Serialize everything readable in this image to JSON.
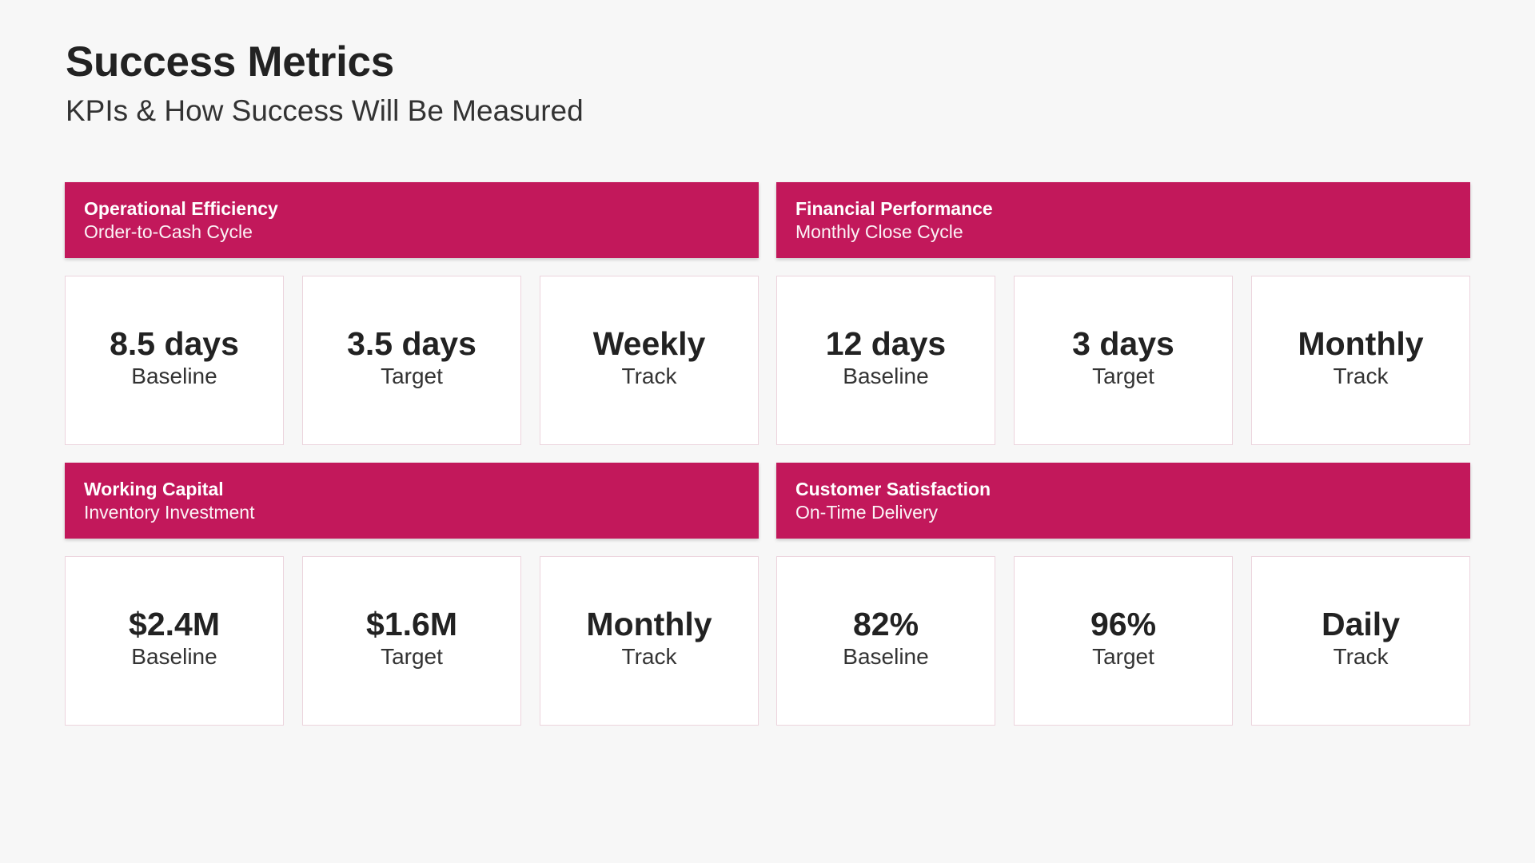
{
  "header": {
    "title": "Success Metrics",
    "subtitle": "KPIs & How Success Will Be Measured"
  },
  "accent_color": "#c2185b",
  "sections": [
    {
      "title": "Operational Efficiency",
      "subtitle": "Order-to-Cash Cycle",
      "metrics": [
        {
          "value": "8.5 days",
          "label": "Baseline"
        },
        {
          "value": "3.5 days",
          "label": "Target"
        },
        {
          "value": "Weekly",
          "label": "Track"
        }
      ]
    },
    {
      "title": "Financial Performance",
      "subtitle": "Monthly Close Cycle",
      "metrics": [
        {
          "value": "12 days",
          "label": "Baseline"
        },
        {
          "value": "3 days",
          "label": "Target"
        },
        {
          "value": "Monthly",
          "label": "Track"
        }
      ]
    },
    {
      "title": "Working Capital",
      "subtitle": "Inventory Investment",
      "metrics": [
        {
          "value": "$2.4M",
          "label": "Baseline"
        },
        {
          "value": "$1.6M",
          "label": "Target"
        },
        {
          "value": "Monthly",
          "label": "Track"
        }
      ]
    },
    {
      "title": "Customer Satisfaction",
      "subtitle": "On-Time Delivery",
      "metrics": [
        {
          "value": "82%",
          "label": "Baseline"
        },
        {
          "value": "96%",
          "label": "Target"
        },
        {
          "value": "Daily",
          "label": "Track"
        }
      ]
    }
  ]
}
